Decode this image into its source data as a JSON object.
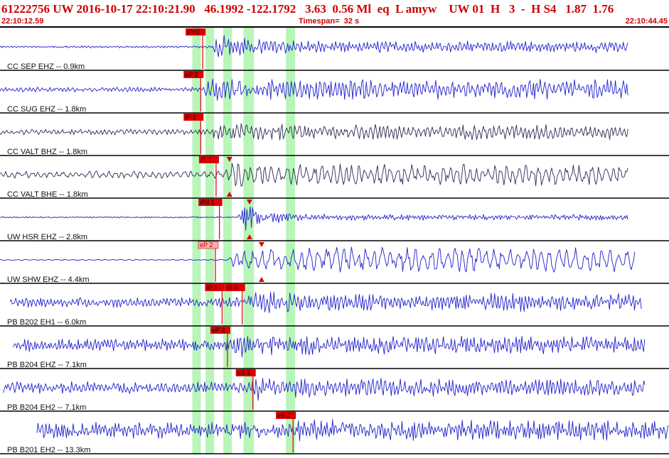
{
  "header": {
    "event_id": "61222756",
    "network": "UW",
    "date": "2016-10-17",
    "time": "22:10:21.90",
    "lat": "46.1992",
    "lon": "-122.1792",
    "depth": "3.63",
    "magnitude": "0.56",
    "mag_type": "Ml",
    "event_type": "eq",
    "flag": "L",
    "author": "amyw",
    "source": "UW 01",
    "gtype": "H",
    "version": "3",
    "dash": "-",
    "quality": "H S4",
    "val1": "1.87",
    "val2": "1.76",
    "start_time": "22:10:12.59",
    "timespan_label": "Timespan=  32 s",
    "end_time": "22:10:44.45"
  },
  "colors": {
    "header_text": "#cc0000",
    "waveform_blue": "#1f1fcc",
    "waveform_dark": "#2a2a55",
    "pick_red": "#dd0000",
    "pick_pink": "#f2b0b0",
    "window_green": "#b8f5b8",
    "divider": "#000000"
  },
  "windows": [
    {
      "start": 0.2875,
      "end": 0.3002
    },
    {
      "start": 0.3072,
      "end": 0.32
    },
    {
      "start": 0.3338,
      "end": 0.3465
    },
    {
      "start": 0.364,
      "end": 0.3795
    },
    {
      "start": 0.4274,
      "end": 0.441
    }
  ],
  "channels": [
    {
      "label": "CC SEP EHZ -- 0.9km",
      "color": "blue",
      "onset": 0.318,
      "quiet": 0.06,
      "peak": 0.85,
      "coda": 0.32,
      "freq": 1.0,
      "span": [
        0.0,
        0.94
      ],
      "picks": [
        {
          "label": "iPc0",
          "pos": 0.303,
          "style": "red"
        }
      ],
      "triangles": []
    },
    {
      "label": "CC SUG EHZ -- 1.8km",
      "color": "blue",
      "onset": 0.305,
      "quiet": 0.14,
      "peak": 0.75,
      "coda": 0.55,
      "freq": 0.9,
      "span": [
        0.0,
        0.94
      ],
      "picks": [
        {
          "label": "eP 2",
          "pos": 0.3,
          "style": "red"
        }
      ],
      "triangles": []
    },
    {
      "label": "CC VALT BHZ -- 1.8km",
      "color": "dark",
      "onset": 0.316,
      "quiet": 0.16,
      "peak": 0.65,
      "coda": 0.42,
      "freq": 0.8,
      "span": [
        0.0,
        0.94
      ],
      "picks": [
        {
          "label": "iP 1",
          "pos": 0.3,
          "style": "red"
        }
      ],
      "triangles": []
    },
    {
      "label": "CC VALT BHE -- 1.8km",
      "color": "dark",
      "onset": 0.335,
      "quiet": 0.2,
      "peak": 0.75,
      "coda": 0.6,
      "freq": 0.55,
      "span": [
        0.0,
        0.94
      ],
      "picks": [
        {
          "label": "iS 1",
          "pos": 0.323,
          "style": "red"
        }
      ],
      "triangles": [
        {
          "pos": 0.343,
          "dir": "down"
        },
        {
          "pos": 0.343,
          "dir": "up"
        }
      ]
    },
    {
      "label": "UW HSR EHZ -- 2.8km",
      "color": "blue",
      "onset": 0.355,
      "quiet": 0.04,
      "peak": 0.9,
      "coda": 0.16,
      "freq": 1.2,
      "span": [
        0.0,
        0.94
      ],
      "picks": [
        {
          "label": "iPd 1",
          "pos": 0.328,
          "style": "red"
        }
      ],
      "triangles": [
        {
          "pos": 0.373,
          "dir": "down"
        },
        {
          "pos": 0.373,
          "dir": "up"
        }
      ]
    },
    {
      "label": "UW SHW EHZ -- 4.4km",
      "color": "blue",
      "onset": 0.34,
      "quiet": 0.03,
      "peak": 0.3,
      "coda": 0.7,
      "freq": 0.45,
      "span": [
        0.0,
        0.95
      ],
      "picks": [
        {
          "label": "eP 2",
          "pos": 0.322,
          "style": "pink"
        }
      ],
      "triangles": [
        {
          "pos": 0.391,
          "dir": "down"
        },
        {
          "pos": 0.391,
          "dir": "up"
        }
      ]
    },
    {
      "label": "PB B202 EH1 -- 6.0km",
      "color": "blue",
      "onset": 0.37,
      "quiet": 0.28,
      "peak": 0.7,
      "coda": 0.5,
      "freq": 1.0,
      "span": [
        0.015,
        0.96
      ],
      "picks": [
        {
          "label": "iP 1",
          "pos": 0.332,
          "style": "red"
        },
        {
          "label": "iS 0",
          "pos": 0.362,
          "style": "red"
        }
      ],
      "triangles": []
    },
    {
      "label": "PB B204 EHZ -- 7.1km",
      "color": "blue",
      "onset": 0.345,
      "quiet": 0.35,
      "peak": 0.85,
      "coda": 0.5,
      "freq": 1.1,
      "span": [
        0.02,
        0.965
      ],
      "picks": [
        {
          "label": "eP 3",
          "pos": 0.34,
          "style": "red"
        }
      ],
      "triangles": []
    },
    {
      "label": "PB B204 EH2 -- 7.1km",
      "color": "blue",
      "onset": 0.375,
      "quiet": 0.34,
      "peak": 0.75,
      "coda": 0.5,
      "freq": 0.95,
      "span": [
        0.005,
        0.965
      ],
      "picks": [
        {
          "label": "eS 2",
          "pos": 0.378,
          "style": "red"
        }
      ],
      "triangles": []
    },
    {
      "label": "PB B201 EH2 -- 13.3km",
      "color": "blue",
      "onset": 0.438,
      "quiet": 0.45,
      "peak": 0.75,
      "coda": 0.55,
      "freq": 1.1,
      "span": [
        0.055,
        1.0
      ],
      "picks": [
        {
          "label": "eS 2",
          "pos": 0.438,
          "style": "red"
        }
      ],
      "triangles": []
    }
  ]
}
